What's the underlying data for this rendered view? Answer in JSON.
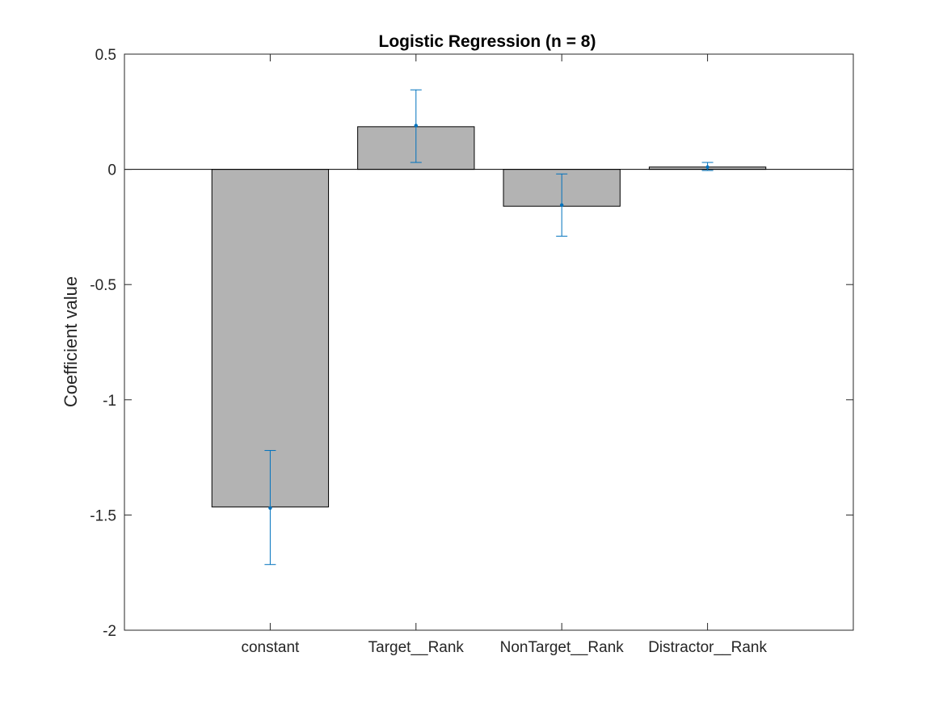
{
  "chart_data": {
    "type": "bar",
    "title": "Logistic Regression (n = 8)",
    "xlabel": "",
    "ylabel": "Coefficient value",
    "categories": [
      "constant",
      "Target__Rank",
      "NonTarget__Rank",
      "Distractor__Rank"
    ],
    "values": [
      -1.465,
      0.185,
      -0.16,
      0.01
    ],
    "error_bars": {
      "center": [
        -1.47,
        0.19,
        -0.155,
        0.01
      ],
      "lower": [
        -1.715,
        0.03,
        -0.29,
        -0.005
      ],
      "upper": [
        -1.22,
        0.345,
        -0.02,
        0.03
      ]
    },
    "ylim": [
      -2,
      0.5
    ],
    "yticks": [
      0.5,
      0,
      -0.5,
      -1,
      -1.5,
      -2
    ],
    "ytick_labels": [
      "0.5",
      "0",
      "-0.5",
      "-1",
      "-1.5",
      "-2"
    ],
    "xlim": [
      0,
      5
    ],
    "grid": false,
    "colors": {
      "bar_fill": "#b3b3b3",
      "bar_edge": "#000000",
      "errorbar": "#0072bd",
      "axis": "#262626",
      "zero_line": "#000000"
    }
  }
}
